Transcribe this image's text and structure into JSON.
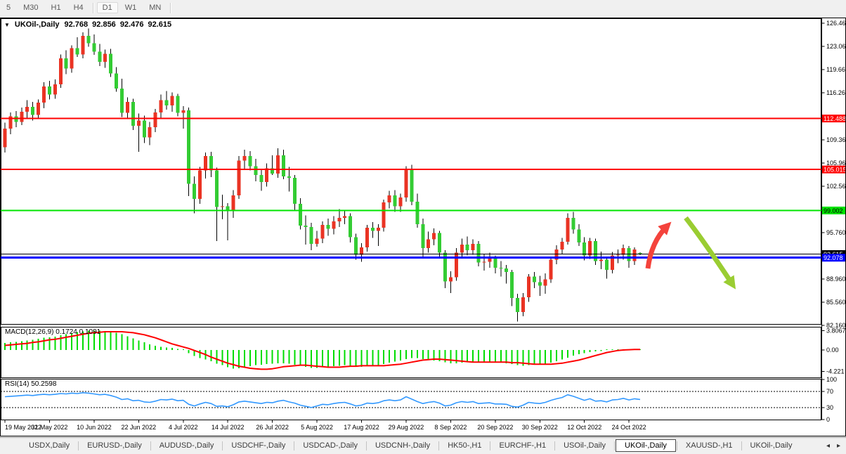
{
  "toolbar": {
    "timeframes": [
      {
        "label": "5",
        "active": false,
        "sep_after": false
      },
      {
        "label": "M30",
        "active": false,
        "sep_after": false
      },
      {
        "label": "H1",
        "active": false,
        "sep_after": false
      },
      {
        "label": "H4",
        "active": false,
        "sep_after": true
      },
      {
        "label": "D1",
        "active": true,
        "sep_after": false
      },
      {
        "label": "W1",
        "active": false,
        "sep_after": false
      },
      {
        "label": "MN",
        "active": false,
        "sep_after": true
      }
    ]
  },
  "chart": {
    "dropdown_icon": "▼",
    "title": {
      "symbol": "UKOil-,Daily",
      "open": "92.768",
      "high": "92.856",
      "low": "92.476",
      "close": "92.615"
    }
  },
  "chart_data": {
    "type": "candlestick",
    "symbol": "UKOil-,Daily",
    "timeframe": "Daily",
    "current_ohlc": {
      "open": 92.768,
      "high": 92.856,
      "low": 92.476,
      "close": 92.615
    },
    "colors": {
      "up": "#ea3323",
      "down": "#33cc33",
      "wick": "#000000",
      "macd_hist": "#00dd00",
      "macd_signal": "#ff0000",
      "rsi_line": "#3399ff"
    },
    "price_axis_ticks": [
      "126.460",
      "123.060",
      "119.660",
      "116.260",
      "109.360",
      "105.960",
      "102.560",
      "95.760",
      "88.960",
      "85.560",
      "82.160"
    ],
    "x_tick_labels": [
      "19 May 2022",
      "31 May 2022",
      "10 Jun 2022",
      "22 Jun 2022",
      "4 Jul 2022",
      "14 Jul 2022",
      "26 Jul 2022",
      "5 Aug 2022",
      "17 Aug 2022",
      "29 Aug 2022",
      "8 Sep 2022",
      "20 Sep 2022",
      "30 Sep 2022",
      "12 Oct 2022",
      "24 Oct 2022"
    ],
    "h_lines": [
      {
        "name": "resistance-1",
        "value": 112.488,
        "label": "112.488",
        "color": "#ff0000",
        "text": "#ffffff",
        "width": 2
      },
      {
        "name": "resistance-2",
        "value": 105.015,
        "label": "105.015",
        "color": "#ff0000",
        "text": "#ffffff",
        "width": 2
      },
      {
        "name": "resistance-3",
        "value": 99.002,
        "label": "99.002",
        "color": "#00e400",
        "text": "#000000",
        "width": 2
      },
      {
        "name": "current-price",
        "value": 92.615,
        "label": "92.615",
        "color": "#000000",
        "text": "#ffffff",
        "width": 1
      },
      {
        "name": "support-1",
        "value": 92.078,
        "label": "92.078",
        "color": "#0000ff",
        "text": "#ffffff",
        "width": 3
      }
    ],
    "candles": [
      [
        108.3,
        111.9,
        107.5,
        111.0
      ],
      [
        111.0,
        113.4,
        110.2,
        112.8
      ],
      [
        112.8,
        113.6,
        111.2,
        112.0
      ],
      [
        112.0,
        114.1,
        111.5,
        113.5
      ],
      [
        113.5,
        115.2,
        112.6,
        114.2
      ],
      [
        114.2,
        114.9,
        112.2,
        113.0
      ],
      [
        113.0,
        115.3,
        112.5,
        114.8
      ],
      [
        114.8,
        117.8,
        114.0,
        117.2
      ],
      [
        117.2,
        118.0,
        115.3,
        116.0
      ],
      [
        116.0,
        118.2,
        115.4,
        117.5
      ],
      [
        117.5,
        121.9,
        117.0,
        121.3
      ],
      [
        121.3,
        122.5,
        119.0,
        119.8
      ],
      [
        119.8,
        123.2,
        119.2,
        122.8
      ],
      [
        122.8,
        124.4,
        121.5,
        121.9
      ],
      [
        121.9,
        125.1,
        121.3,
        124.6
      ],
      [
        124.6,
        125.7,
        123.0,
        123.5
      ],
      [
        123.5,
        124.8,
        121.8,
        122.3
      ],
      [
        122.3,
        123.4,
        120.2,
        120.8
      ],
      [
        120.8,
        122.6,
        119.9,
        122.0
      ],
      [
        122.0,
        122.7,
        118.6,
        119.1
      ],
      [
        119.1,
        120.0,
        116.4,
        116.9
      ],
      [
        116.9,
        118.3,
        112.7,
        113.3
      ],
      [
        113.3,
        115.6,
        112.4,
        114.9
      ],
      [
        114.9,
        115.4,
        110.8,
        111.4
      ],
      [
        111.4,
        113.2,
        107.6,
        112.2
      ],
      [
        112.2,
        112.9,
        108.9,
        109.7
      ],
      [
        109.7,
        112.0,
        108.6,
        111.2
      ],
      [
        111.2,
        113.9,
        110.5,
        113.4
      ],
      [
        113.4,
        116.0,
        112.6,
        115.2
      ],
      [
        115.2,
        116.5,
        113.8,
        114.4
      ],
      [
        114.4,
        116.3,
        113.5,
        115.8
      ],
      [
        115.8,
        116.1,
        112.8,
        113.3
      ],
      [
        113.3,
        114.3,
        111.0,
        113.7
      ],
      [
        113.7,
        114.1,
        101.1,
        102.9
      ],
      [
        102.9,
        104.0,
        98.6,
        100.7
      ],
      [
        100.7,
        105.4,
        100.0,
        104.9
      ],
      [
        104.9,
        107.5,
        103.7,
        107.0
      ],
      [
        107.0,
        107.6,
        103.9,
        104.9
      ],
      [
        104.9,
        105.3,
        94.5,
        99.5
      ],
      [
        99.5,
        101.3,
        97.7,
        99.6
      ],
      [
        99.6,
        100.1,
        94.6,
        98.9
      ],
      [
        98.9,
        102.0,
        97.9,
        101.2
      ],
      [
        101.2,
        107.0,
        100.7,
        106.3
      ],
      [
        106.3,
        107.9,
        105.0,
        107.0
      ],
      [
        107.0,
        107.7,
        104.9,
        105.5
      ],
      [
        105.5,
        106.6,
        103.3,
        104.2
      ],
      [
        104.2,
        105.0,
        101.9,
        103.2
      ],
      [
        103.2,
        105.9,
        102.5,
        105.2
      ],
      [
        105.2,
        107.1,
        104.2,
        104.4
      ],
      [
        104.4,
        108.1,
        103.8,
        107.1
      ],
      [
        107.1,
        107.9,
        103.6,
        104.0
      ],
      [
        104.0,
        105.4,
        101.8,
        103.8
      ],
      [
        103.8,
        104.2,
        99.1,
        100.0
      ],
      [
        100.0,
        100.8,
        96.2,
        96.8
      ],
      [
        96.8,
        98.3,
        94.0,
        96.6
      ],
      [
        96.6,
        97.2,
        93.2,
        94.1
      ],
      [
        94.1,
        96.0,
        93.7,
        94.9
      ],
      [
        94.9,
        97.4,
        94.2,
        96.9
      ],
      [
        96.9,
        97.8,
        95.3,
        96.3
      ],
      [
        96.3,
        98.2,
        95.5,
        97.4
      ],
      [
        97.4,
        99.2,
        96.6,
        97.9
      ],
      [
        97.9,
        99.0,
        97.0,
        98.2
      ],
      [
        98.2,
        98.6,
        94.3,
        95.1
      ],
      [
        95.1,
        95.6,
        91.8,
        92.5
      ],
      [
        92.5,
        94.2,
        91.5,
        93.6
      ],
      [
        93.6,
        96.9,
        93.0,
        96.5
      ],
      [
        96.5,
        97.3,
        95.0,
        96.0
      ],
      [
        96.0,
        97.0,
        93.8,
        96.5
      ],
      [
        96.5,
        100.6,
        95.9,
        100.2
      ],
      [
        100.2,
        101.9,
        99.3,
        101.2
      ],
      [
        101.2,
        102.0,
        98.8,
        99.6
      ],
      [
        99.6,
        101.5,
        98.8,
        100.9
      ],
      [
        100.9,
        105.5,
        100.3,
        105.1
      ],
      [
        105.1,
        105.7,
        99.8,
        100.3
      ],
      [
        100.3,
        101.5,
        96.5,
        97.0
      ],
      [
        97.0,
        97.8,
        92.0,
        93.5
      ],
      [
        93.5,
        95.9,
        92.8,
        94.8
      ],
      [
        94.8,
        96.4,
        93.9,
        95.7
      ],
      [
        95.7,
        96.0,
        92.1,
        92.8
      ],
      [
        92.8,
        93.2,
        87.6,
        88.6
      ],
      [
        88.6,
        90.1,
        86.9,
        89.2
      ],
      [
        89.2,
        93.5,
        88.7,
        92.8
      ],
      [
        92.8,
        94.9,
        92.0,
        94.0
      ],
      [
        94.0,
        95.2,
        92.4,
        93.2
      ],
      [
        93.2,
        94.8,
        92.5,
        94.1
      ],
      [
        94.1,
        94.5,
        90.8,
        91.4
      ],
      [
        91.4,
        92.6,
        90.2,
        91.5
      ],
      [
        91.5,
        92.8,
        90.6,
        92.0
      ],
      [
        92.0,
        92.4,
        89.8,
        90.6
      ],
      [
        90.6,
        91.6,
        89.3,
        90.5
      ],
      [
        90.5,
        91.0,
        88.3,
        90.0
      ],
      [
        90.0,
        90.3,
        85.0,
        86.2
      ],
      [
        86.2,
        86.8,
        82.7,
        84.1
      ],
      [
        84.1,
        86.9,
        83.5,
        86.3
      ],
      [
        86.3,
        89.7,
        85.6,
        89.3
      ],
      [
        89.3,
        90.0,
        87.6,
        88.5
      ],
      [
        88.5,
        89.4,
        86.5,
        88.0
      ],
      [
        88.0,
        89.8,
        86.8,
        88.9
      ],
      [
        88.9,
        92.2,
        88.4,
        91.8
      ],
      [
        91.8,
        93.9,
        91.1,
        93.3
      ],
      [
        93.3,
        95.0,
        92.6,
        94.4
      ],
      [
        94.4,
        98.6,
        94.0,
        97.9
      ],
      [
        97.9,
        98.8,
        95.6,
        96.2
      ],
      [
        96.2,
        97.0,
        93.8,
        94.3
      ],
      [
        94.3,
        95.1,
        91.7,
        92.4
      ],
      [
        92.4,
        95.0,
        91.9,
        94.5
      ],
      [
        94.5,
        94.9,
        91.0,
        91.6
      ],
      [
        91.6,
        93.0,
        90.4,
        91.8
      ],
      [
        91.8,
        92.2,
        89.0,
        90.3
      ],
      [
        90.3,
        92.9,
        89.8,
        92.4
      ],
      [
        92.4,
        93.3,
        91.3,
        92.5
      ],
      [
        92.5,
        94.0,
        91.8,
        93.5
      ],
      [
        93.5,
        93.8,
        90.6,
        91.6
      ],
      [
        91.6,
        93.6,
        91.0,
        93.3
      ],
      [
        92.768,
        92.856,
        92.476,
        92.615
      ]
    ],
    "macd": {
      "label": "MACD(12,26,9) 0.1724 0.1091",
      "main_value": 0.1724,
      "signal_value": 0.1091,
      "axis_ticks": [
        "3.8067",
        "0.00",
        "-4.221"
      ],
      "hist": [
        1.4,
        1.5,
        1.6,
        1.7,
        1.9,
        2.0,
        2.2,
        2.4,
        2.5,
        2.6,
        2.9,
        3.1,
        3.3,
        3.5,
        3.7,
        3.8,
        3.8,
        3.8,
        3.7,
        3.6,
        3.4,
        3.1,
        2.7,
        2.3,
        1.9,
        1.5,
        1.1,
        0.8,
        0.6,
        0.5,
        0.4,
        0.2,
        -0.1,
        -0.6,
        -1.2,
        -1.6,
        -1.9,
        -2.2,
        -2.7,
        -3.0,
        -3.4,
        -3.7,
        -3.6,
        -3.4,
        -3.2,
        -3.0,
        -2.9,
        -2.8,
        -2.7,
        -2.6,
        -2.6,
        -2.7,
        -2.9,
        -3.1,
        -3.3,
        -3.5,
        -3.5,
        -3.4,
        -3.3,
        -3.2,
        -3.1,
        -3.0,
        -3.1,
        -3.2,
        -3.3,
        -3.2,
        -3.1,
        -3.0,
        -2.8,
        -2.5,
        -2.3,
        -2.1,
        -1.8,
        -1.6,
        -1.6,
        -1.8,
        -2.0,
        -2.1,
        -2.2,
        -2.4,
        -2.6,
        -2.6,
        -2.5,
        -2.4,
        -2.3,
        -2.3,
        -2.4,
        -2.4,
        -2.5,
        -2.5,
        -2.6,
        -2.8,
        -3.0,
        -3.1,
        -3.0,
        -2.9,
        -2.8,
        -2.7,
        -2.5,
        -2.2,
        -1.9,
        -1.5,
        -1.1,
        -0.8,
        -0.6,
        -0.4,
        -0.3,
        -0.2,
        -0.1,
        0.0,
        0.05,
        0.1,
        0.12,
        0.15,
        0.17
      ],
      "signal": [
        0.9,
        1.0,
        1.1,
        1.2,
        1.3,
        1.5,
        1.6,
        1.8,
        2.0,
        2.1,
        2.3,
        2.5,
        2.7,
        2.9,
        3.1,
        3.3,
        3.4,
        3.5,
        3.6,
        3.6,
        3.6,
        3.6,
        3.5,
        3.4,
        3.2,
        3.0,
        2.7,
        2.4,
        2.0,
        1.6,
        1.2,
        0.9,
        0.6,
        0.3,
        -0.1,
        -0.5,
        -0.9,
        -1.4,
        -1.8,
        -2.2,
        -2.6,
        -2.9,
        -3.2,
        -3.4,
        -3.6,
        -3.7,
        -3.8,
        -3.8,
        -3.7,
        -3.5,
        -3.3,
        -3.2,
        -3.1,
        -3.0,
        -3.0,
        -3.1,
        -3.2,
        -3.3,
        -3.4,
        -3.4,
        -3.4,
        -3.3,
        -3.2,
        -3.2,
        -3.1,
        -3.1,
        -3.1,
        -3.1,
        -3.1,
        -3.0,
        -2.9,
        -2.8,
        -2.6,
        -2.4,
        -2.2,
        -2.0,
        -1.9,
        -1.8,
        -1.8,
        -1.9,
        -2.0,
        -2.1,
        -2.2,
        -2.3,
        -2.4,
        -2.4,
        -2.4,
        -2.4,
        -2.4,
        -2.4,
        -2.4,
        -2.5,
        -2.5,
        -2.6,
        -2.7,
        -2.8,
        -2.8,
        -2.8,
        -2.8,
        -2.7,
        -2.6,
        -2.4,
        -2.2,
        -2.0,
        -1.7,
        -1.4,
        -1.1,
        -0.8,
        -0.5,
        -0.3,
        -0.1,
        0.0,
        0.05,
        0.1,
        0.11
      ]
    },
    "rsi": {
      "label": "RSI(14) 50.2598",
      "period": 14,
      "value": 50.2598,
      "axis_ticks": [
        "100",
        "70",
        "30",
        "0"
      ],
      "levels": [
        70,
        30
      ],
      "values": [
        57,
        58,
        59,
        60,
        61,
        60,
        62,
        63,
        62,
        63,
        65,
        64,
        66,
        65,
        67,
        66,
        64,
        62,
        63,
        60,
        56,
        50,
        52,
        47,
        48,
        44,
        43,
        46,
        50,
        49,
        51,
        47,
        48,
        38,
        34,
        39,
        43,
        40,
        33,
        34,
        32,
        37,
        44,
        46,
        44,
        42,
        40,
        43,
        42,
        46,
        48,
        44,
        41,
        36,
        33,
        30,
        34,
        38,
        37,
        40,
        42,
        43,
        39,
        34,
        36,
        41,
        40,
        42,
        47,
        49,
        47,
        49,
        57,
        51,
        45,
        40,
        43,
        45,
        41,
        34,
        36,
        42,
        45,
        43,
        45,
        40,
        41,
        42,
        39,
        39,
        38,
        33,
        31,
        36,
        43,
        41,
        40,
        43,
        48,
        52,
        55,
        62,
        58,
        53,
        48,
        52,
        46,
        47,
        44,
        49,
        50,
        53,
        49,
        52,
        50.26
      ]
    },
    "annotations": [
      {
        "type": "arrow",
        "name": "up-arrow-annotation",
        "color": "#f4433c",
        "from": [
          921,
          356
        ],
        "ctrl": [
          926,
          318
        ],
        "to": [
          948,
          296
        ]
      },
      {
        "type": "arrow",
        "name": "down-arrow-annotation",
        "color": "#9acd32",
        "from": [
          975,
          284
        ],
        "ctrl": [
          1000,
          316
        ],
        "to": [
          1041,
          378
        ]
      }
    ]
  },
  "tabs": {
    "scroll_left": "◂",
    "scroll_right": "▸",
    "items": [
      {
        "label": "USDX,Daily",
        "active": false
      },
      {
        "label": "EURUSD-,Daily",
        "active": false
      },
      {
        "label": "AUDUSD-,Daily",
        "active": false
      },
      {
        "label": "USDCHF-,Daily",
        "active": false
      },
      {
        "label": "USDCAD-,Daily",
        "active": false
      },
      {
        "label": "USDCNH-,Daily",
        "active": false
      },
      {
        "label": "HK50-,H1",
        "active": false
      },
      {
        "label": "EURCHF-,H1",
        "active": false
      },
      {
        "label": "USOil-,Daily",
        "active": false
      },
      {
        "label": "UKOil-,Daily",
        "active": true
      },
      {
        "label": "XAUUSD-,H1",
        "active": false
      },
      {
        "label": "UKOil-,Daily",
        "active": false
      }
    ]
  }
}
